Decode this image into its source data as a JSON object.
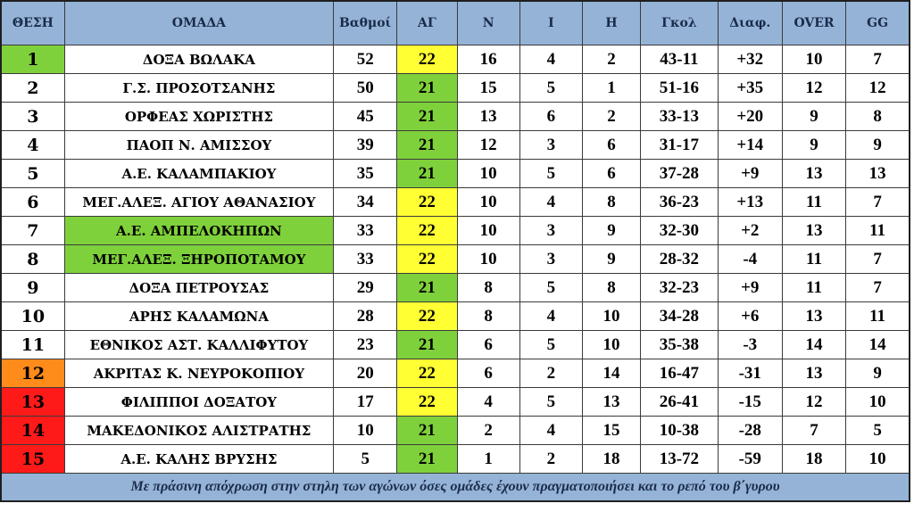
{
  "colors": {
    "header_bg": "#95b3d7",
    "green": "#7fd13b",
    "yellow": "#ffff33",
    "orange": "#ff8c1a",
    "red": "#ff1a1a",
    "white": "#ffffff"
  },
  "headers": [
    "ΘΕΣΗ",
    "ΟΜΑΔΑ",
    "Βαθμοί",
    "ΑΓ",
    "Ν",
    "Ι",
    "Η",
    "Γκολ",
    "Διαφ.",
    "OVER",
    "GG"
  ],
  "rows": [
    {
      "pos": "1",
      "team": "ΔΟΞΑ ΒΩΛΑΚΑ",
      "pts": "52",
      "gp": "22",
      "w": "16",
      "d": "4",
      "l": "2",
      "goals": "43-11",
      "diff": "+32",
      "over": "10",
      "gg": "7",
      "pos_bg": "green",
      "team_bg": "white",
      "gp_bg": "yellow"
    },
    {
      "pos": "2",
      "team": "Γ.Σ. ΠΡΟΣΟΤΣΑΝΗΣ",
      "pts": "50",
      "gp": "21",
      "w": "15",
      "d": "5",
      "l": "1",
      "goals": "51-16",
      "diff": "+35",
      "over": "12",
      "gg": "12",
      "pos_bg": "white",
      "team_bg": "white",
      "gp_bg": "green"
    },
    {
      "pos": "3",
      "team": "ΟΡΦΕΑΣ ΧΩΡΙΣΤΗΣ",
      "pts": "45",
      "gp": "21",
      "w": "13",
      "d": "6",
      "l": "2",
      "goals": "33-13",
      "diff": "+20",
      "over": "9",
      "gg": "8",
      "pos_bg": "white",
      "team_bg": "white",
      "gp_bg": "green"
    },
    {
      "pos": "4",
      "team": "ΠΑΟΠ Ν. ΑΜΙΣΣΟΥ",
      "pts": "39",
      "gp": "21",
      "w": "12",
      "d": "3",
      "l": "6",
      "goals": "31-17",
      "diff": "+14",
      "over": "9",
      "gg": "9",
      "pos_bg": "white",
      "team_bg": "white",
      "gp_bg": "green"
    },
    {
      "pos": "5",
      "team": "Α.Ε. ΚΑΛΑΜΠΑΚΙΟΥ",
      "pts": "35",
      "gp": "21",
      "w": "10",
      "d": "5",
      "l": "6",
      "goals": "37-28",
      "diff": "+9",
      "over": "13",
      "gg": "13",
      "pos_bg": "white",
      "team_bg": "white",
      "gp_bg": "green"
    },
    {
      "pos": "6",
      "team": "ΜΕΓ.ΑΛΕΞ. ΑΓΙΟΥ ΑΘΑΝΑΣΙΟΥ",
      "pts": "34",
      "gp": "22",
      "w": "10",
      "d": "4",
      "l": "8",
      "goals": "36-23",
      "diff": "+13",
      "over": "11",
      "gg": "7",
      "pos_bg": "white",
      "team_bg": "white",
      "gp_bg": "yellow"
    },
    {
      "pos": "7",
      "team": "Α.Ε. ΑΜΠΕΛΟΚΗΠΩΝ",
      "pts": "33",
      "gp": "22",
      "w": "10",
      "d": "3",
      "l": "9",
      "goals": "32-30",
      "diff": "+2",
      "over": "13",
      "gg": "11",
      "pos_bg": "white",
      "team_bg": "green",
      "gp_bg": "yellow"
    },
    {
      "pos": "8",
      "team": "ΜΕΓ.ΑΛΕΞ. ΞΗΡΟΠΟΤΑΜΟΥ",
      "pts": "33",
      "gp": "22",
      "w": "10",
      "d": "3",
      "l": "9",
      "goals": "28-32",
      "diff": "-4",
      "over": "11",
      "gg": "7",
      "pos_bg": "white",
      "team_bg": "green",
      "gp_bg": "yellow"
    },
    {
      "pos": "9",
      "team": "ΔΟΞΑ ΠΕΤΡΟΥΣΑΣ",
      "pts": "29",
      "gp": "21",
      "w": "8",
      "d": "5",
      "l": "8",
      "goals": "32-23",
      "diff": "+9",
      "over": "11",
      "gg": "7",
      "pos_bg": "white",
      "team_bg": "white",
      "gp_bg": "green"
    },
    {
      "pos": "10",
      "team": "ΑΡΗΣ ΚΑΛΑΜΩΝΑ",
      "pts": "28",
      "gp": "22",
      "w": "8",
      "d": "4",
      "l": "10",
      "goals": "34-28",
      "diff": "+6",
      "over": "13",
      "gg": "11",
      "pos_bg": "white",
      "team_bg": "white",
      "gp_bg": "yellow"
    },
    {
      "pos": "11",
      "team": "ΕΘΝΙΚΟΣ ΑΣΤ. ΚΑΛΛΙΦΥΤΟΥ",
      "pts": "23",
      "gp": "21",
      "w": "6",
      "d": "5",
      "l": "10",
      "goals": "35-38",
      "diff": "-3",
      "over": "14",
      "gg": "14",
      "pos_bg": "white",
      "team_bg": "white",
      "gp_bg": "green"
    },
    {
      "pos": "12",
      "team": "ΑΚΡΙΤΑΣ Κ. ΝΕΥΡΟΚΟΠΙΟΥ",
      "pts": "20",
      "gp": "22",
      "w": "6",
      "d": "2",
      "l": "14",
      "goals": "16-47",
      "diff": "-31",
      "over": "13",
      "gg": "9",
      "pos_bg": "orange",
      "team_bg": "white",
      "gp_bg": "yellow"
    },
    {
      "pos": "13",
      "team": "ΦΙΛΙΠΠΟΙ ΔΟΞΑΤΟΥ",
      "pts": "17",
      "gp": "22",
      "w": "4",
      "d": "5",
      "l": "13",
      "goals": "26-41",
      "diff": "-15",
      "over": "12",
      "gg": "10",
      "pos_bg": "red",
      "team_bg": "white",
      "gp_bg": "yellow"
    },
    {
      "pos": "14",
      "team": "ΜΑΚΕΔΟΝΙΚΟΣ ΑΛΙΣΤΡΑΤΗΣ",
      "pts": "10",
      "gp": "21",
      "w": "2",
      "d": "4",
      "l": "15",
      "goals": "10-38",
      "diff": "-28",
      "over": "7",
      "gg": "5",
      "pos_bg": "red",
      "team_bg": "white",
      "gp_bg": "green"
    },
    {
      "pos": "15",
      "team": "Α.Ε. ΚΑΛΗΣ ΒΡΥΣΗΣ",
      "pts": "5",
      "gp": "21",
      "w": "1",
      "d": "2",
      "l": "18",
      "goals": "13-72",
      "diff": "-59",
      "over": "18",
      "gg": "10",
      "pos_bg": "red",
      "team_bg": "white",
      "gp_bg": "green"
    }
  ],
  "footer_note": "Με πράσινη  απόχρωση στην στηλη των αγώνων όσες ομάδες έχουν πραγματοποιήσει και το ρεπό του β΄γυρου"
}
